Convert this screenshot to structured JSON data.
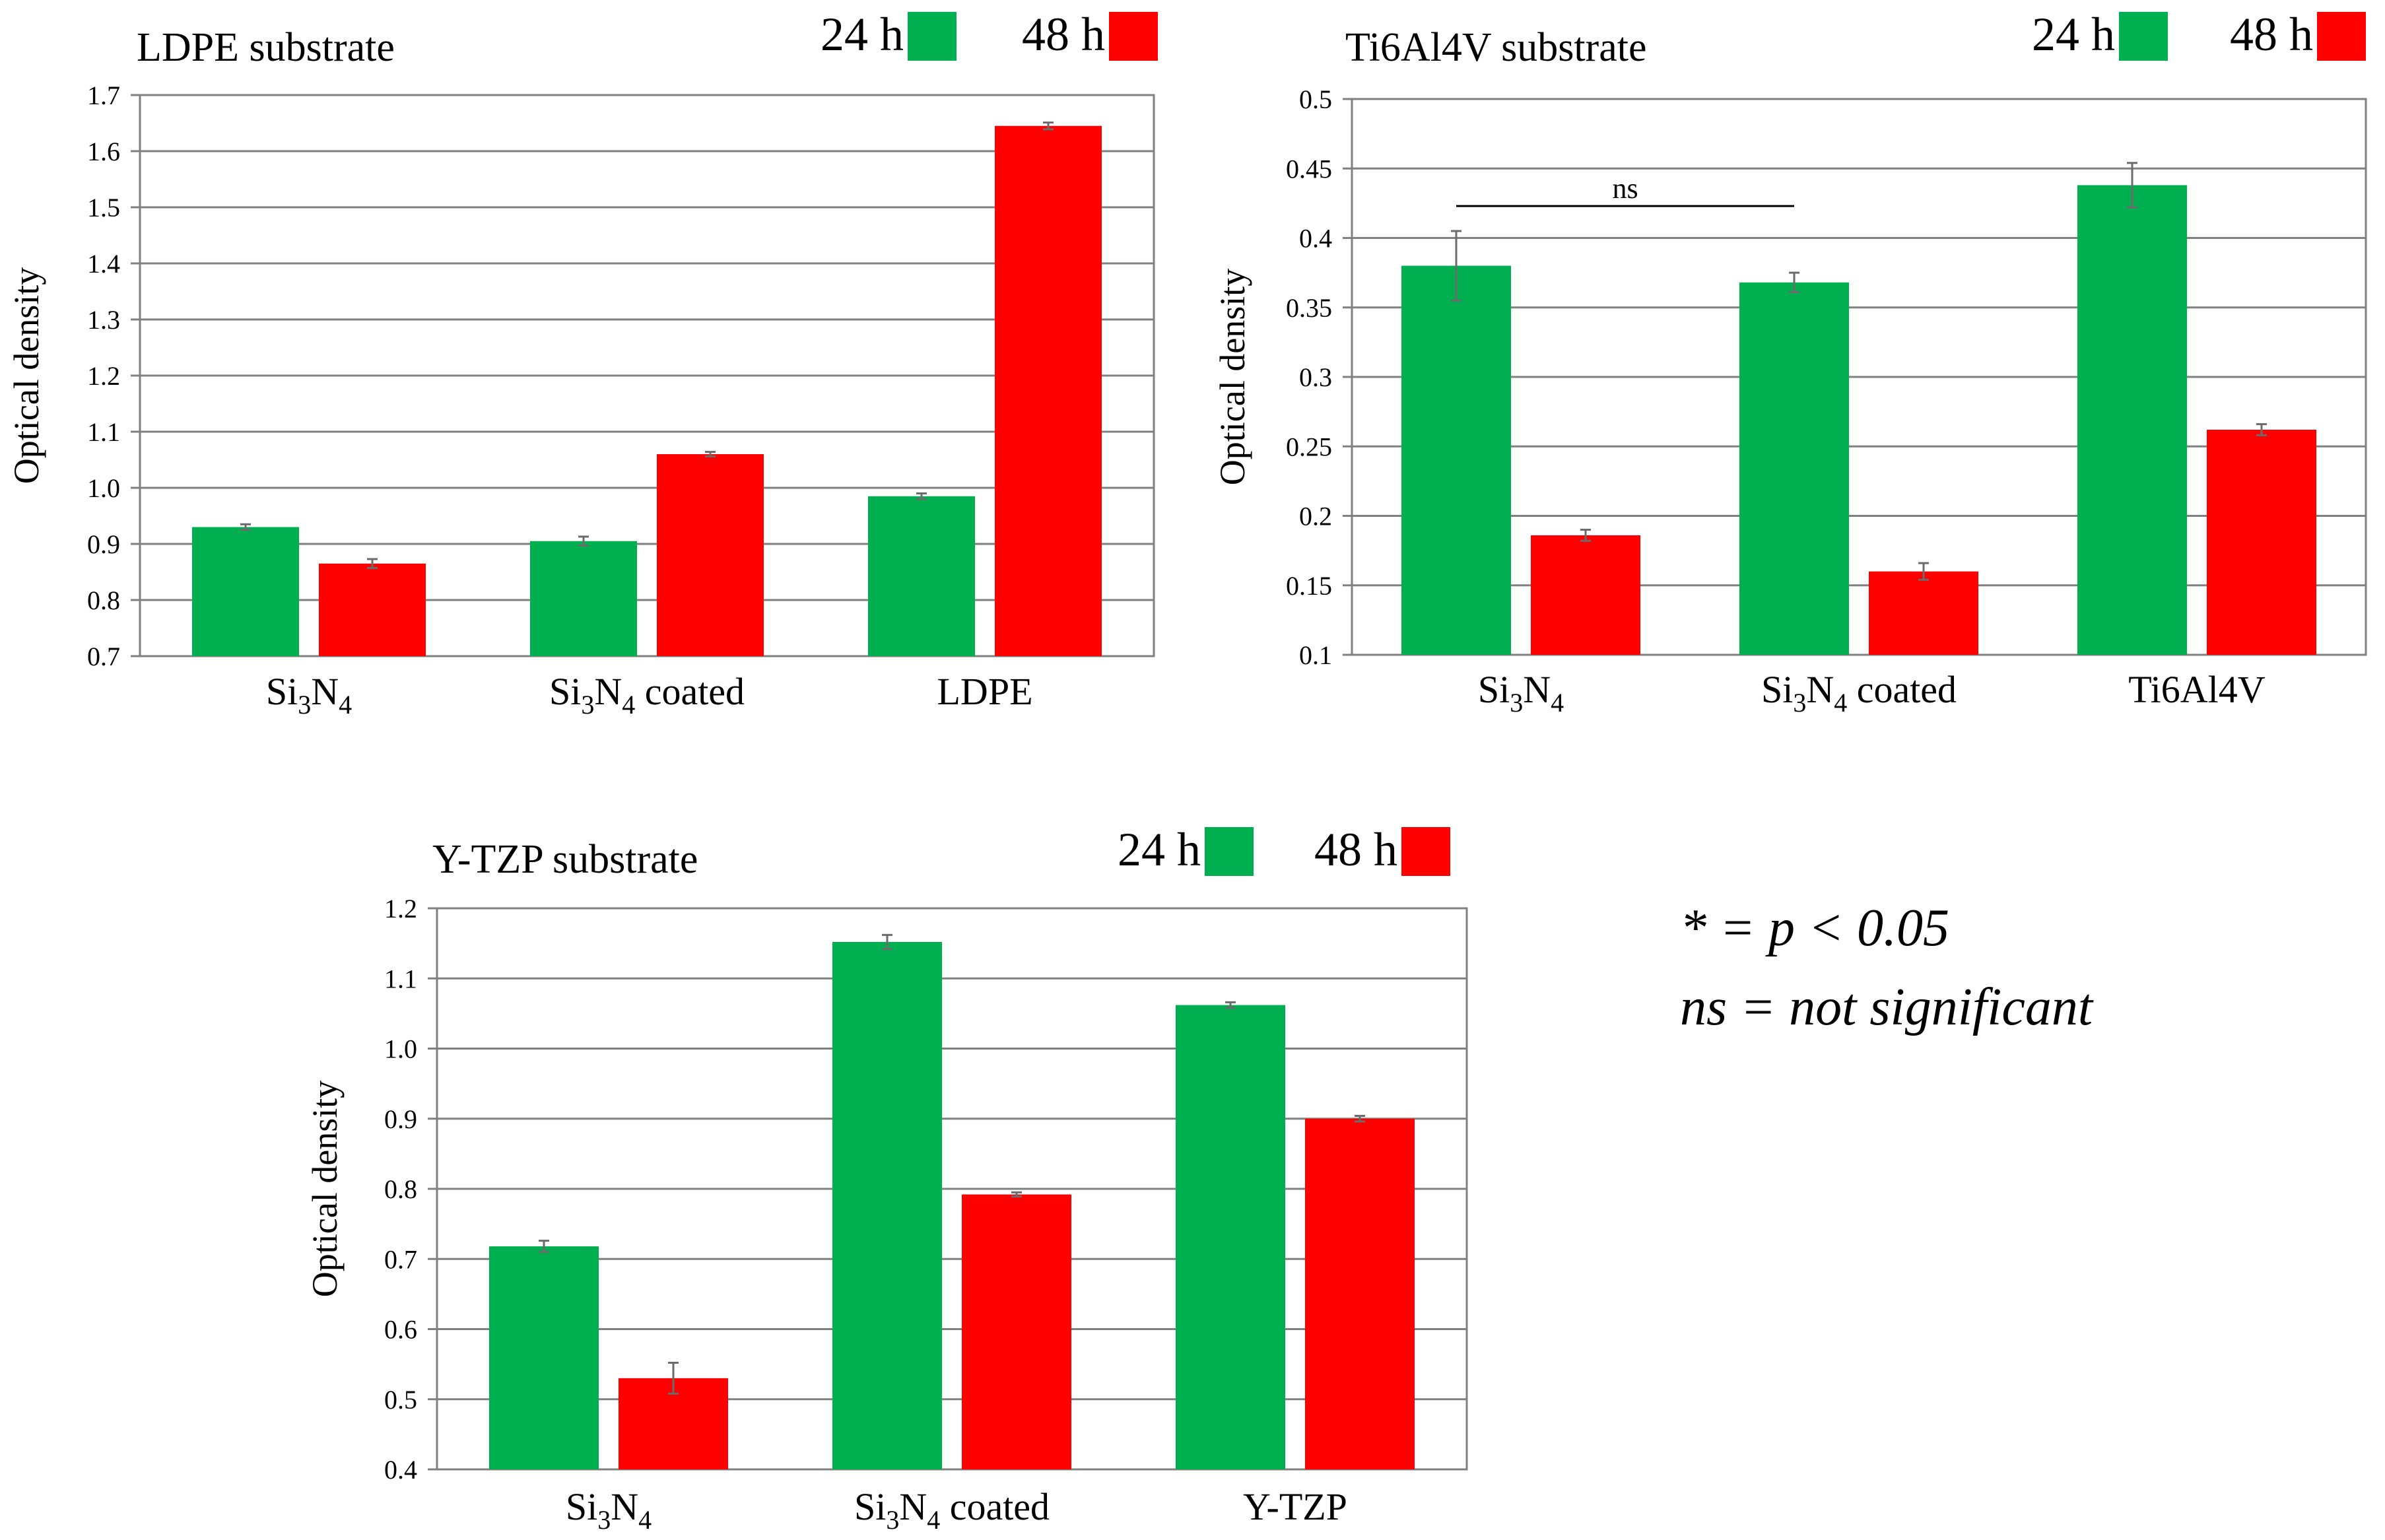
{
  "colors": {
    "series_24h": "#00b050",
    "series_48h": "#ff0000",
    "grid": "#808080",
    "error_bar": "#6b6b6b"
  },
  "chart_data": [
    {
      "type": "bar",
      "title": "LDPE substrate",
      "ylabel": "Optical density",
      "ylim": [
        0.7,
        1.7
      ],
      "yticks": [
        "0.7",
        "0.8",
        "0.9",
        "1.0",
        "1.1",
        "1.2",
        "1.3",
        "1.4",
        "1.5",
        "1.6",
        "1.7"
      ],
      "categories": [
        {
          "main": "Si",
          "s1": "3",
          "m2": "N",
          "s2": "4",
          "rest": ""
        },
        {
          "main": "Si",
          "s1": "3",
          "m2": "N",
          "s2": "4",
          "rest": " coated"
        },
        {
          "main": "LDPE",
          "s1": "",
          "m2": "",
          "s2": "",
          "rest": ""
        }
      ],
      "series": [
        {
          "name": "24 h",
          "values": [
            0.93,
            0.905,
            0.985
          ],
          "errors": [
            0.005,
            0.008,
            0.005
          ]
        },
        {
          "name": "48 h",
          "values": [
            0.865,
            1.06,
            1.645
          ],
          "errors": [
            0.008,
            0.004,
            0.006
          ]
        }
      ],
      "annotations": []
    },
    {
      "type": "bar",
      "title": "Ti6Al4V substrate",
      "ylabel": "Optical density",
      "ylim": [
        0.1,
        0.5
      ],
      "yticks": [
        "0.1",
        "0.15",
        "0.2",
        "0.25",
        "0.3",
        "0.35",
        "0.4",
        "0.45",
        "0.5"
      ],
      "categories": [
        {
          "main": "Si",
          "s1": "3",
          "m2": "N",
          "s2": "4",
          "rest": ""
        },
        {
          "main": "Si",
          "s1": "3",
          "m2": "N",
          "s2": "4",
          "rest": " coated"
        },
        {
          "main": "Ti6Al4V",
          "s1": "",
          "m2": "",
          "s2": "",
          "rest": ""
        }
      ],
      "series": [
        {
          "name": "24 h",
          "values": [
            0.38,
            0.368,
            0.438
          ],
          "errors": [
            0.025,
            0.007,
            0.016
          ]
        },
        {
          "name": "48 h",
          "values": [
            0.186,
            0.16,
            0.262
          ],
          "errors": [
            0.004,
            0.006,
            0.004
          ]
        }
      ],
      "annotations": [
        {
          "text": "ns",
          "from": 0,
          "to": 1,
          "y": 0.423
        }
      ]
    },
    {
      "type": "bar",
      "title": "Y-TZP substrate",
      "ylabel": "Optical density",
      "ylim": [
        0.4,
        1.2
      ],
      "yticks": [
        "0.4",
        "0.5",
        "0.6",
        "0.7",
        "0.8",
        "0.9",
        "1.0",
        "1.1",
        "1.2"
      ],
      "categories": [
        {
          "main": "Si",
          "s1": "3",
          "m2": "N",
          "s2": "4",
          "rest": ""
        },
        {
          "main": "Si",
          "s1": "3",
          "m2": "N",
          "s2": "4",
          "rest": " coated"
        },
        {
          "main": "Y-TZP",
          "s1": "",
          "m2": "",
          "s2": "",
          "rest": ""
        }
      ],
      "series": [
        {
          "name": "24 h",
          "values": [
            0.718,
            1.152,
            1.062
          ],
          "errors": [
            0.008,
            0.01,
            0.004
          ]
        },
        {
          "name": "48 h",
          "values": [
            0.53,
            0.792,
            0.9
          ],
          "errors": [
            0.022,
            0.003,
            0.004
          ]
        }
      ],
      "annotations": []
    }
  ],
  "notes": {
    "significance": "* = p < 0.05",
    "ns_definition": "ns = not significant"
  }
}
